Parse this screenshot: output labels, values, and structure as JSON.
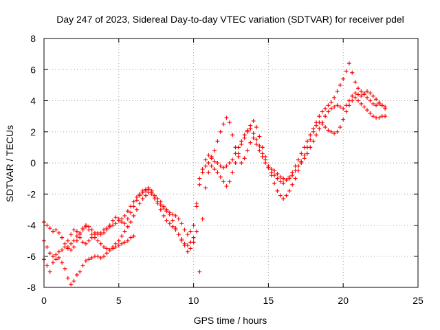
{
  "chart_data": {
    "type": "scatter",
    "title": "Day 247 of 2023, Sidereal Day-to-day VTEC variation (SDTVAR) for receiver pdel",
    "xlabel": "GPS time / hours",
    "ylabel": "SDTVAR / TECUs",
    "xlim": [
      0,
      25
    ],
    "ylim": [
      -8,
      8
    ],
    "x_ticks": [
      0,
      5,
      10,
      15,
      20,
      25
    ],
    "y_ticks": [
      -8,
      -6,
      -4,
      -2,
      0,
      2,
      4,
      6,
      8
    ],
    "x_tick_labels": [
      "0",
      "5",
      "10",
      "15",
      "20",
      "25"
    ],
    "y_tick_labels": [
      "-8",
      "-6",
      "-4",
      "-2",
      "0",
      "2",
      "4",
      "6",
      "8"
    ],
    "grid": true,
    "marker": "+",
    "color": "#ff0000",
    "series": [
      {
        "x": [
          0.0,
          0.2,
          0.4,
          0.6,
          0.8,
          1.0,
          1.2,
          1.4,
          1.6,
          1.8,
          2.0,
          2.2,
          2.4,
          2.6,
          2.8,
          3.0,
          3.2,
          3.4,
          3.6,
          3.8,
          4.0,
          4.2,
          4.4,
          4.6,
          4.8,
          5.0,
          5.2,
          5.4,
          5.6,
          5.8,
          6.0,
          6.2,
          6.4,
          6.6,
          6.8,
          7.0,
          7.2,
          7.4,
          7.6,
          7.8,
          8.0,
          8.2,
          8.4,
          8.6,
          8.8,
          9.0,
          9.2,
          9.4,
          9.6,
          9.8,
          10.0,
          10.2,
          10.4,
          10.6,
          10.8,
          11.0,
          11.2,
          11.4,
          11.6,
          11.8,
          12.0,
          12.2,
          12.4,
          12.6,
          12.8,
          13.0,
          13.2,
          13.4,
          13.6,
          13.8,
          14.0,
          14.2,
          14.4,
          14.6,
          14.8,
          15.0,
          15.2,
          15.4,
          15.6,
          15.8,
          16.0,
          16.2,
          16.4,
          16.6,
          16.8,
          17.0,
          17.2,
          17.4,
          17.6,
          17.8,
          18.0,
          18.2,
          18.4,
          18.6,
          18.8,
          19.0,
          19.2,
          19.4,
          19.6,
          19.8,
          20.0,
          20.2,
          20.4,
          20.6,
          20.8,
          21.0,
          21.2,
          21.4,
          21.6,
          21.8,
          22.0,
          22.2,
          22.4,
          22.6,
          22.8
        ],
        "y": [
          -3.8,
          -4.0,
          -4.2,
          -4.4,
          -4.3,
          -4.5,
          -4.8,
          -5.2,
          -5.5,
          -5.6,
          -5.4,
          -5.0,
          -4.6,
          -4.2,
          -4.0,
          -4.1,
          -4.3,
          -4.5,
          -4.6,
          -4.5,
          -4.3,
          -4.2,
          -4.1,
          -4.0,
          -3.9,
          -3.7,
          -3.6,
          -3.4,
          -3.1,
          -2.8,
          -2.5,
          -2.2,
          -2.0,
          -1.8,
          -1.7,
          -1.6,
          -1.8,
          -2.1,
          -2.3,
          -2.5,
          -2.8,
          -3.0,
          -3.3,
          -3.7,
          -4.2,
          -4.6,
          -5.0,
          -5.2,
          -5.3,
          -5.1,
          -4.8,
          -2.6,
          -1.0,
          -0.4,
          0.2,
          0.5,
          0.3,
          0.1,
          0.0,
          -0.2,
          -0.3,
          -0.2,
          0.0,
          0.2,
          0.6,
          1.0,
          1.4,
          1.8,
          2.1,
          2.2,
          1.9,
          1.5,
          1.1,
          0.6,
          0.2,
          -0.2,
          -0.4,
          -0.5,
          -0.7,
          -0.9,
          -1.0,
          -1.1,
          -1.0,
          -0.8,
          -0.5,
          -0.2,
          0.1,
          0.3,
          0.6,
          1.0,
          1.4,
          1.8,
          2.2,
          2.6,
          3.0,
          3.3,
          3.5,
          3.6,
          3.7,
          3.6,
          3.5,
          3.7,
          4.0,
          4.3,
          4.5,
          4.4,
          4.3,
          4.5,
          4.6,
          4.5,
          4.3,
          4.1,
          3.9,
          3.7,
          3.5
        ]
      },
      {
        "x": [
          0.0,
          0.2,
          0.4,
          0.6,
          0.8,
          1.0,
          1.2,
          1.4,
          1.6,
          1.8,
          2.0,
          2.2,
          2.4,
          2.6,
          2.8,
          3.0,
          3.2,
          3.4,
          3.6,
          3.8,
          4.0,
          4.2,
          4.4,
          4.6,
          4.8,
          5.0,
          5.2,
          5.4,
          5.6,
          5.8,
          6.0,
          6.2,
          6.4,
          6.6,
          6.8,
          7.0,
          7.2,
          7.4,
          7.6,
          7.8,
          8.0,
          8.2,
          8.4,
          8.6,
          8.8,
          9.0,
          9.2,
          9.4,
          9.6,
          9.8,
          10.0,
          10.2,
          10.4,
          10.6,
          10.8,
          11.0,
          11.2,
          11.4,
          11.6,
          11.8,
          12.0,
          12.2,
          12.4,
          12.6,
          12.8,
          13.0,
          13.2,
          13.4,
          13.6,
          13.8,
          14.0,
          14.2,
          14.4,
          14.6,
          14.8,
          15.0,
          15.2,
          15.4,
          15.6,
          15.8,
          16.0,
          16.2,
          16.4,
          16.6,
          16.8,
          17.0,
          17.2,
          17.4,
          17.6,
          17.8,
          18.0,
          18.2,
          18.4,
          18.6,
          18.8,
          19.0,
          19.2,
          19.4,
          19.6,
          19.8,
          20.0,
          20.2,
          20.4,
          20.6,
          20.8,
          21.0,
          21.2,
          21.4,
          21.6,
          21.8,
          22.0,
          22.2,
          22.4,
          22.6,
          22.8
        ],
        "y": [
          -5.0,
          -5.4,
          -5.8,
          -6.0,
          -6.2,
          -6.1,
          -6.4,
          -6.8,
          -7.4,
          -7.8,
          -7.6,
          -7.2,
          -7.0,
          -6.6,
          -6.3,
          -6.2,
          -6.1,
          -6.0,
          -6.0,
          -6.1,
          -6.0,
          -5.8,
          -5.6,
          -5.4,
          -5.2,
          -5.0,
          -4.7,
          -4.4,
          -4.1,
          -3.8,
          -3.4,
          -3.0,
          -2.6,
          -2.3,
          -2.1,
          -1.9,
          -2.0,
          -2.3,
          -2.6,
          -3.0,
          -3.4,
          -3.7,
          -3.9,
          -4.1,
          -4.3,
          -4.6,
          -4.9,
          -5.3,
          -5.7,
          -5.5,
          -5.1,
          -4.4,
          -7.0,
          -3.6,
          -1.6,
          -0.6,
          -0.2,
          -0.4,
          -0.6,
          -0.9,
          -1.2,
          -1.5,
          -1.2,
          -0.6,
          0.0,
          0.6,
          1.2,
          1.6,
          2.0,
          2.4,
          2.7,
          2.3,
          1.7,
          1.0,
          0.4,
          -0.3,
          -0.8,
          -1.3,
          -1.8,
          -2.1,
          -2.3,
          -2.1,
          -1.8,
          -1.4,
          -1.0,
          -0.5,
          0.0,
          0.5,
          1.0,
          1.5,
          2.0,
          2.4,
          2.6,
          2.5,
          2.3,
          2.1,
          2.0,
          1.9,
          2.0,
          2.3,
          2.8,
          3.3,
          3.7,
          4.0,
          4.2,
          4.0,
          3.8,
          3.6,
          3.4,
          3.2,
          3.0,
          2.9,
          2.9,
          3.0,
          3.0
        ]
      },
      {
        "x": [
          0.0,
          0.2,
          0.4,
          0.6,
          0.8,
          1.0,
          1.2,
          1.4,
          1.6,
          1.8,
          2.0,
          2.2,
          2.4,
          2.6,
          2.8,
          3.0,
          3.2,
          3.4,
          3.6,
          3.8,
          4.0,
          4.2,
          4.4,
          4.6,
          4.8,
          5.0,
          5.2,
          5.4,
          5.6,
          5.8,
          6.0,
          6.2,
          6.4,
          6.6,
          6.8,
          7.0,
          7.2,
          7.4,
          7.6,
          7.8,
          8.0,
          8.2,
          8.4,
          8.6,
          8.8,
          9.0,
          9.2,
          9.4,
          9.6,
          9.8,
          10.0,
          10.2,
          10.4,
          10.6,
          10.8,
          11.0,
          11.2,
          11.4,
          11.6,
          11.8,
          12.0,
          12.2,
          12.4,
          12.6,
          12.8,
          13.0,
          13.2,
          13.4,
          13.6,
          13.8,
          14.0,
          14.2,
          14.4,
          14.6,
          14.8,
          15.0,
          15.2,
          15.4,
          15.6,
          15.8,
          16.0,
          16.2,
          16.4,
          16.6,
          16.8,
          17.0,
          17.2,
          17.4,
          17.6,
          17.8,
          18.0,
          18.2,
          18.4,
          18.6,
          18.8,
          19.0,
          19.2,
          19.4,
          19.6,
          19.8,
          20.0,
          20.2,
          20.4,
          20.6,
          20.8,
          21.0,
          21.2,
          21.4,
          21.6,
          21.8,
          22.0,
          22.2,
          22.4,
          22.6,
          22.8
        ],
        "y": [
          -6.2,
          -6.6,
          -7.0,
          -6.4,
          -5.9,
          -5.7,
          -5.6,
          -5.4,
          -5.0,
          -4.6,
          -4.3,
          -4.4,
          -4.8,
          -5.1,
          -5.2,
          -5.0,
          -4.8,
          -4.6,
          -4.5,
          -4.6,
          -4.5,
          -4.3,
          -4.0,
          -3.7,
          -3.5,
          -3.6,
          -3.8,
          -3.9,
          -3.6,
          -3.2,
          -2.8,
          -2.4,
          -2.1,
          -1.9,
          -1.8,
          -1.7,
          -1.9,
          -2.2,
          -2.5,
          -2.7,
          -2.9,
          -3.1,
          -3.2,
          -3.3,
          -3.4,
          -3.6,
          -3.9,
          -4.3,
          -4.6,
          -4.4,
          -4.0,
          -2.8,
          -1.4,
          -0.6,
          -0.2,
          0.0,
          0.4,
          0.8,
          1.4,
          2.0,
          2.5,
          2.9,
          2.6,
          1.8,
          1.0,
          0.4,
          0.0,
          0.3,
          0.8,
          1.3,
          1.6,
          1.2,
          0.8,
          0.4,
          0.0,
          -0.3,
          -0.6,
          -0.8,
          -1.0,
          -1.2,
          -1.3,
          -1.1,
          -0.9,
          -0.6,
          -0.2,
          0.2,
          0.6,
          1.0,
          1.4,
          1.8,
          2.2,
          2.6,
          3.0,
          3.3,
          3.5,
          3.7,
          3.9,
          4.2,
          4.6,
          5.0,
          5.4,
          5.9,
          6.4,
          5.8,
          5.2,
          4.8,
          4.6,
          4.4,
          4.2,
          4.0,
          3.8,
          3.7,
          3.8,
          3.7,
          3.6
        ]
      },
      {
        "x": [
          1.6,
          1.8,
          2.0,
          2.2,
          2.4,
          2.6,
          2.8,
          3.0,
          3.2,
          3.4,
          3.6,
          3.8,
          4.0,
          4.2,
          4.4,
          4.6,
          4.8,
          5.0,
          5.2,
          5.4,
          5.6,
          5.8,
          6.0
        ],
        "y": [
          -5.4,
          -5.2,
          -5.0,
          -4.7,
          -4.5,
          -4.3,
          -4.1,
          -4.3,
          -4.6,
          -4.8,
          -5.0,
          -5.2,
          -5.4,
          -5.5,
          -5.6,
          -5.5,
          -5.4,
          -5.3,
          -5.2,
          -5.1,
          -5.0,
          -4.8,
          -4.7
        ]
      }
    ]
  }
}
